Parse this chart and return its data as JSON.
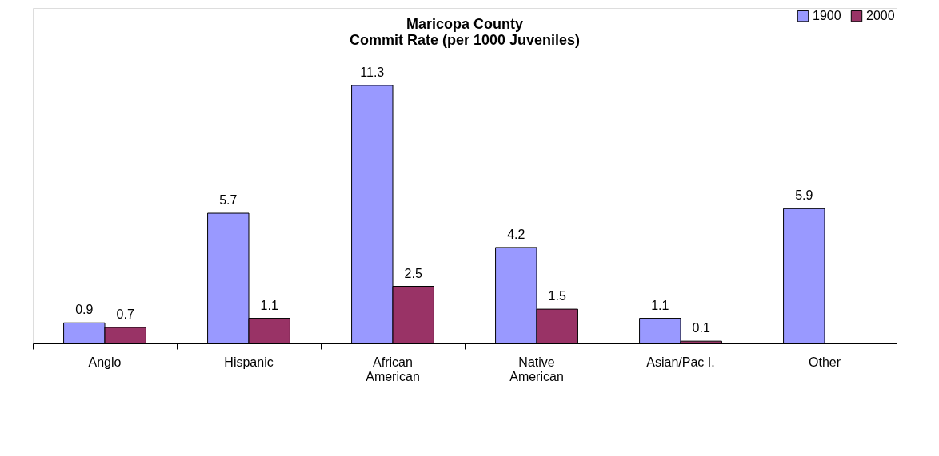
{
  "chart_data": {
    "type": "bar",
    "title": "Maricopa County\nCommit Rate (per 1000 Juveniles)",
    "categories": [
      "Anglo",
      "Hispanic",
      "African\nAmerican",
      "Native\nAmerican",
      "Asian/Pac I.",
      "Other"
    ],
    "series": [
      {
        "name": "1900",
        "color": "#9999ff",
        "values": [
          0.9,
          5.7,
          11.3,
          4.2,
          1.1,
          5.9
        ]
      },
      {
        "name": "2000",
        "color": "#993366",
        "values": [
          0.7,
          1.1,
          2.5,
          1.5,
          0.1,
          null
        ]
      }
    ],
    "data_labels": true,
    "legend": "top right",
    "grid": false,
    "tick_labels": "x"
  }
}
